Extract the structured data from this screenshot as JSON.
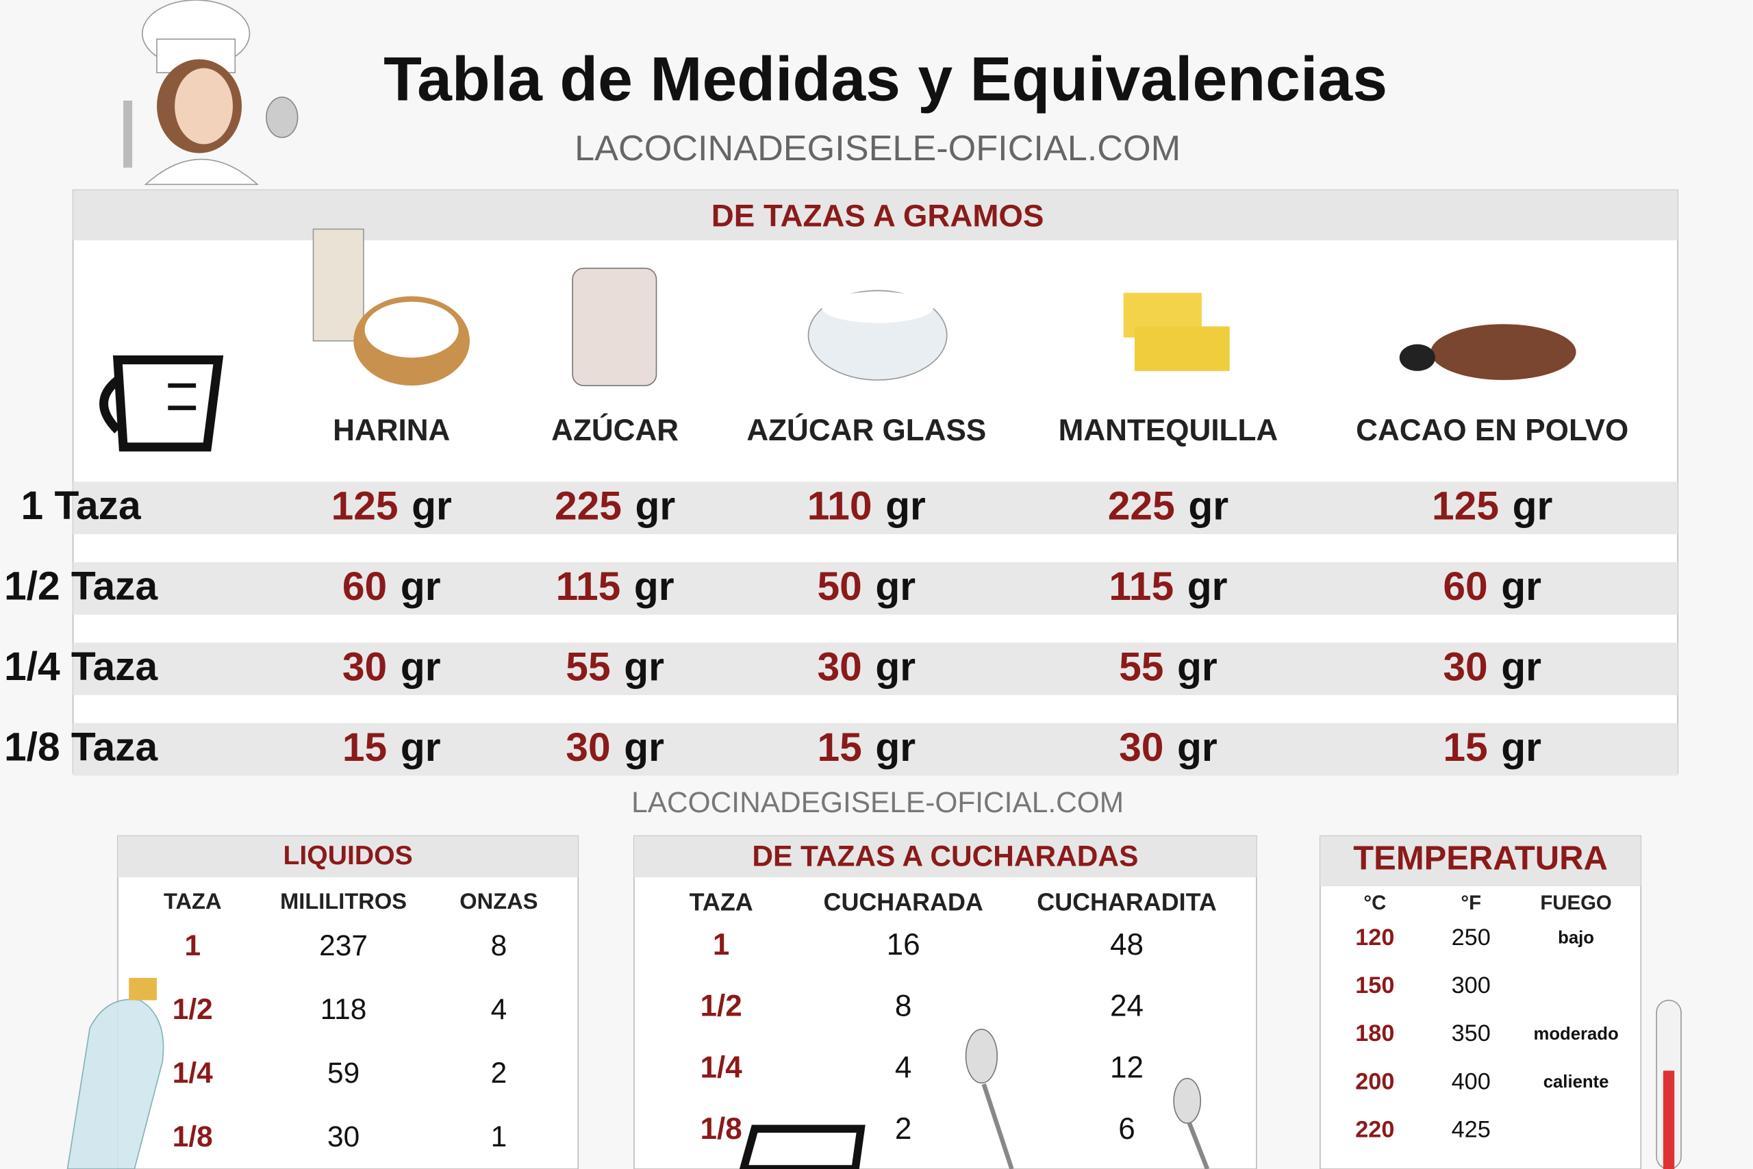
{
  "header": {
    "title": "Tabla de Medidas y Equivalencias",
    "website": "LACOCINADEGISELE-OFICIAL.COM"
  },
  "main_table": {
    "title": "DE TAZAS A GRAMOS",
    "unit": "gr",
    "columns": [
      "HARINA",
      "AZÚCAR",
      "AZÚCAR GLASS",
      "MANTEQUILLA",
      "CACAO EN POLVO"
    ],
    "rows": [
      {
        "label": "1 Taza",
        "cells": [
          125,
          225,
          110,
          225,
          125
        ]
      },
      {
        "label": "1/2 Taza",
        "cells": [
          60,
          115,
          50,
          115,
          60
        ]
      },
      {
        "label": "1/4 Taza",
        "cells": [
          30,
          55,
          30,
          55,
          30
        ]
      },
      {
        "label": "1/8 Taza",
        "cells": [
          15,
          30,
          15,
          30,
          15
        ]
      }
    ]
  },
  "watermark": "LACOCINADEGISELE-OFICIAL.COM",
  "liquidos": {
    "title": "LIQUIDOS",
    "columns": [
      "TAZA",
      "MILILITROS",
      "ONZAS"
    ],
    "rows": [
      [
        "1",
        237,
        8
      ],
      [
        "1/2",
        118,
        4
      ],
      [
        "1/4",
        59,
        2
      ],
      [
        "1/8",
        30,
        1
      ]
    ]
  },
  "cucharadas": {
    "title": "DE TAZAS A CUCHARADAS",
    "columns": [
      "TAZA",
      "CUCHARADA",
      "CUCHARADITA"
    ],
    "rows": [
      [
        "1",
        16,
        48
      ],
      [
        "1/2",
        8,
        24
      ],
      [
        "1/4",
        4,
        12
      ],
      [
        "1/8",
        2,
        6
      ]
    ]
  },
  "temperatura": {
    "title": "TEMPERATURA",
    "columns": [
      "°C",
      "°F",
      "FUEGO"
    ],
    "rows": [
      [
        120,
        250,
        "bajo"
      ],
      [
        150,
        300
      ],
      [
        180,
        350,
        "moderado"
      ],
      [
        200,
        400,
        "caliente"
      ],
      [
        220,
        425
      ]
    ]
  }
}
